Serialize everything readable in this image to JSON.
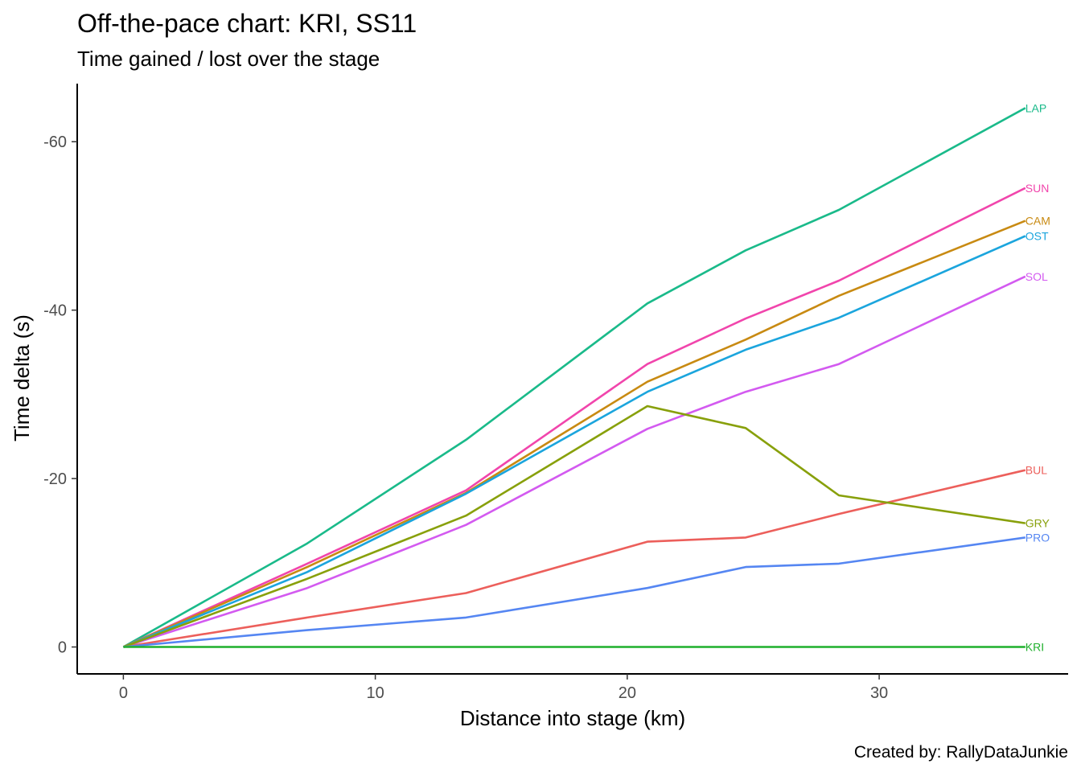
{
  "chart_data": {
    "type": "line",
    "title": "Off-the-pace chart: KRI, SS11",
    "subtitle": "Time gained / lost over the stage",
    "xlabel": "Distance into stage (km)",
    "ylabel": "Time delta (s)",
    "caption": "Created by: RallyDataJunkie",
    "xlim": [
      -1.8,
      37.5
    ],
    "ylim": [
      3.1,
      -66.8
    ],
    "y_reversed": true,
    "x_ticks": [
      0,
      10,
      20,
      30
    ],
    "y_ticks": [
      0,
      -20,
      -40,
      -60
    ],
    "x_tick_labels": [
      "0",
      "10",
      "20",
      "30"
    ],
    "y_tick_labels": [
      "0",
      "-20",
      "-40",
      "-60"
    ],
    "grid": false,
    "legend": "inline-labels-at-line-ends",
    "x": [
      0,
      7.3,
      13.6,
      20.8,
      24.7,
      28.4,
      35.8
    ],
    "series": [
      {
        "name": "LAP",
        "color": "#1ABA8A",
        "values": [
          0,
          -12.3,
          -24.6,
          -40.8,
          -47.1,
          -51.9,
          -64.0
        ]
      },
      {
        "name": "SUN",
        "color": "#F145AC",
        "values": [
          0,
          -9.9,
          -18.6,
          -33.6,
          -39.0,
          -43.5,
          -54.5
        ]
      },
      {
        "name": "CAM",
        "color": "#C88A12",
        "values": [
          0,
          -9.5,
          -18.3,
          -31.5,
          -36.5,
          -41.7,
          -50.6
        ]
      },
      {
        "name": "OST",
        "color": "#1BA5DD",
        "values": [
          0,
          -8.9,
          -18.2,
          -30.3,
          -35.3,
          -39.1,
          -48.8
        ]
      },
      {
        "name": "SOL",
        "color": "#D35AF0",
        "values": [
          0,
          -7.0,
          -14.5,
          -25.9,
          -30.3,
          -33.6,
          -44.0
        ]
      },
      {
        "name": "BUL",
        "color": "#EC5F5B",
        "values": [
          0,
          -3.5,
          -6.4,
          -12.5,
          -13.0,
          -15.8,
          -21.0
        ]
      },
      {
        "name": "GRY",
        "color": "#88A00B",
        "values": [
          0,
          -8.1,
          -15.6,
          -28.6,
          -26.0,
          -18.0,
          -14.7
        ]
      },
      {
        "name": "PRO",
        "color": "#5586F2",
        "values": [
          0,
          -2.0,
          -3.5,
          -7.0,
          -9.5,
          -9.9,
          -13.0
        ]
      },
      {
        "name": "KRI",
        "color": "#1FB02C",
        "values": [
          0,
          0,
          0,
          0,
          0,
          0,
          0
        ]
      }
    ]
  }
}
